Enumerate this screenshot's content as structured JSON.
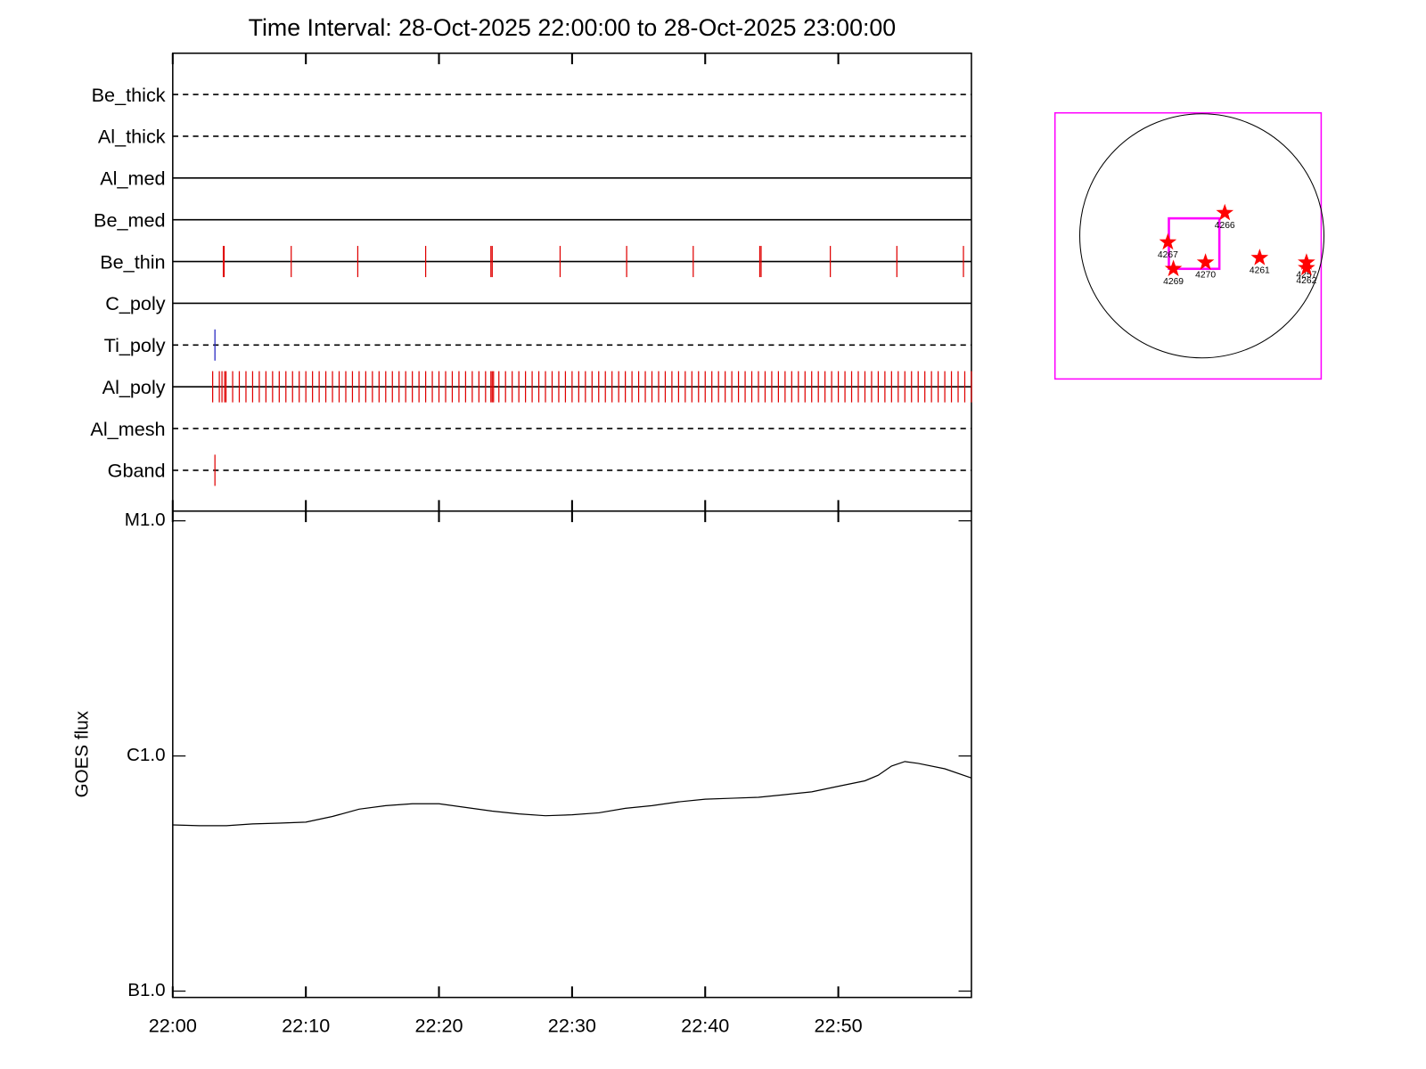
{
  "chart_data": [
    {
      "type": "event",
      "title": "Time Interval: 28-Oct-2025 22:00:00 to 28-Oct-2025 23:00:00",
      "xlim": [
        0,
        60
      ],
      "series": [
        {
          "name": "Be_thick",
          "linestyle": "dashed",
          "color": "#e00000",
          "values": []
        },
        {
          "name": "Al_thick",
          "linestyle": "dashed",
          "color": "#e00000",
          "values": []
        },
        {
          "name": "Al_med",
          "linestyle": "solid",
          "color": "#e00000",
          "values": []
        },
        {
          "name": "Be_med",
          "linestyle": "solid",
          "color": "#e00000",
          "values": []
        },
        {
          "name": "Be_thin",
          "linestyle": "solid",
          "color": "#e00000",
          "values": [
            3.8,
            3.86,
            8.9,
            13.9,
            19.0,
            23.9,
            24.0,
            29.1,
            34.1,
            39.1,
            44.1,
            44.2,
            49.4,
            54.4,
            59.4
          ]
        },
        {
          "name": "C_poly",
          "linestyle": "solid",
          "color": "#e00000",
          "values": []
        },
        {
          "name": "Ti_poly",
          "linestyle": "dashed",
          "color": "#2020c0",
          "values": [
            3.17
          ]
        },
        {
          "name": "Al_poly",
          "linestyle": "solid",
          "color": "#e00000",
          "values": [
            3.0,
            3.5,
            3.7,
            3.9,
            4.0,
            4.5,
            5.0,
            5.5,
            6.0,
            6.5,
            7.0,
            7.5,
            8.0,
            8.5,
            9.0,
            9.5,
            10.0,
            10.5,
            11.0,
            11.5,
            12.0,
            12.5,
            13.0,
            13.5,
            14.0,
            14.5,
            15.0,
            15.5,
            16.0,
            16.5,
            17.0,
            17.5,
            18.0,
            18.5,
            19.0,
            19.5,
            20.0,
            20.5,
            21.0,
            21.5,
            22.0,
            22.5,
            23.0,
            23.5,
            23.9,
            24.0,
            24.1,
            24.5,
            25.0,
            25.5,
            26.0,
            26.5,
            27.0,
            27.5,
            28.0,
            28.5,
            29.0,
            29.5,
            30.0,
            30.5,
            31.0,
            31.5,
            32.0,
            32.5,
            33.0,
            33.5,
            34.0,
            34.5,
            35.0,
            35.5,
            36.0,
            36.5,
            37.0,
            37.5,
            38.0,
            38.5,
            39.0,
            39.5,
            40.0,
            40.5,
            41.0,
            41.5,
            42.0,
            42.5,
            43.0,
            43.5,
            44.0,
            44.5,
            45.0,
            45.5,
            46.0,
            46.5,
            47.0,
            47.5,
            48.0,
            48.5,
            49.0,
            49.5,
            50.0,
            50.5,
            51.0,
            51.5,
            52.0,
            52.5,
            53.0,
            53.5,
            54.0,
            54.5,
            55.0,
            55.5,
            56.0,
            56.5,
            57.0,
            57.5,
            58.0,
            58.5,
            59.0,
            59.5,
            60.0
          ]
        },
        {
          "name": "Al_mesh",
          "linestyle": "dashed",
          "color": "#e00000",
          "values": []
        },
        {
          "name": "Gband",
          "linestyle": "dashed",
          "color": "#e00000",
          "values": [
            3.17
          ]
        }
      ]
    },
    {
      "type": "line",
      "ylabel": "GOES flux",
      "log": true,
      "xlim": [
        0,
        60
      ],
      "xticks": [
        {
          "value": 0,
          "label": "22:00"
        },
        {
          "value": 10,
          "label": "22:10"
        },
        {
          "value": 20,
          "label": "22:20"
        },
        {
          "value": 30,
          "label": "22:30"
        },
        {
          "value": 40,
          "label": "22:40"
        },
        {
          "value": 50,
          "label": "22:50"
        }
      ],
      "ylim": [
        9.4e-08,
        1.09e-05
      ],
      "yticks": [
        {
          "value": 1e-07,
          "label": "B1.0"
        },
        {
          "value": 1e-06,
          "label": "C1.0"
        },
        {
          "value": 1e-05,
          "label": "M1.0"
        }
      ],
      "x": [
        0,
        2,
        4,
        6,
        8,
        10,
        12,
        14,
        16,
        18,
        20,
        22,
        24,
        26,
        28,
        30,
        32,
        34,
        36,
        38,
        40,
        42,
        44,
        46,
        48,
        50,
        52,
        53,
        54,
        55,
        56,
        58,
        60
      ],
      "series": [
        {
          "name": "GOES",
          "color": "#000000",
          "values": [
            5.09e-07,
            5.05e-07,
            5.05e-07,
            5.14e-07,
            5.18e-07,
            5.23e-07,
            5.53e-07,
            5.94e-07,
            6.15e-07,
            6.26e-07,
            6.26e-07,
            6.04e-07,
            5.83e-07,
            5.67e-07,
            5.57e-07,
            5.62e-07,
            5.73e-07,
            5.99e-07,
            6.15e-07,
            6.38e-07,
            6.55e-07,
            6.61e-07,
            6.67e-07,
            6.85e-07,
            7.04e-07,
            7.43e-07,
            7.84e-07,
            8.28e-07,
            9.06e-07,
            9.47e-07,
            9.3e-07,
            8.82e-07,
            8.06e-07
          ]
        }
      ]
    },
    {
      "type": "scatter",
      "xlim": [
        -1167,
        948
      ],
      "ylim": [
        -1137,
        977
      ],
      "radius": 970,
      "fov": {
        "x": [
          -262,
          139
        ],
        "y": [
          -262,
          139
        ],
        "color": "#ff00ff"
      },
      "color": "#ff0000",
      "points": [
        {
          "label": "4266",
          "x": 182,
          "y": 182
        },
        {
          "label": "4267",
          "x": -270,
          "y": -51
        },
        {
          "label": "4269",
          "x": -226,
          "y": -262
        },
        {
          "label": "4270",
          "x": 29,
          "y": -211
        },
        {
          "label": "4261",
          "x": 459,
          "y": -175
        },
        {
          "label": "4257",
          "x": 831,
          "y": -211
        },
        {
          "label": "4262",
          "x": 831,
          "y": -255
        }
      ]
    }
  ]
}
